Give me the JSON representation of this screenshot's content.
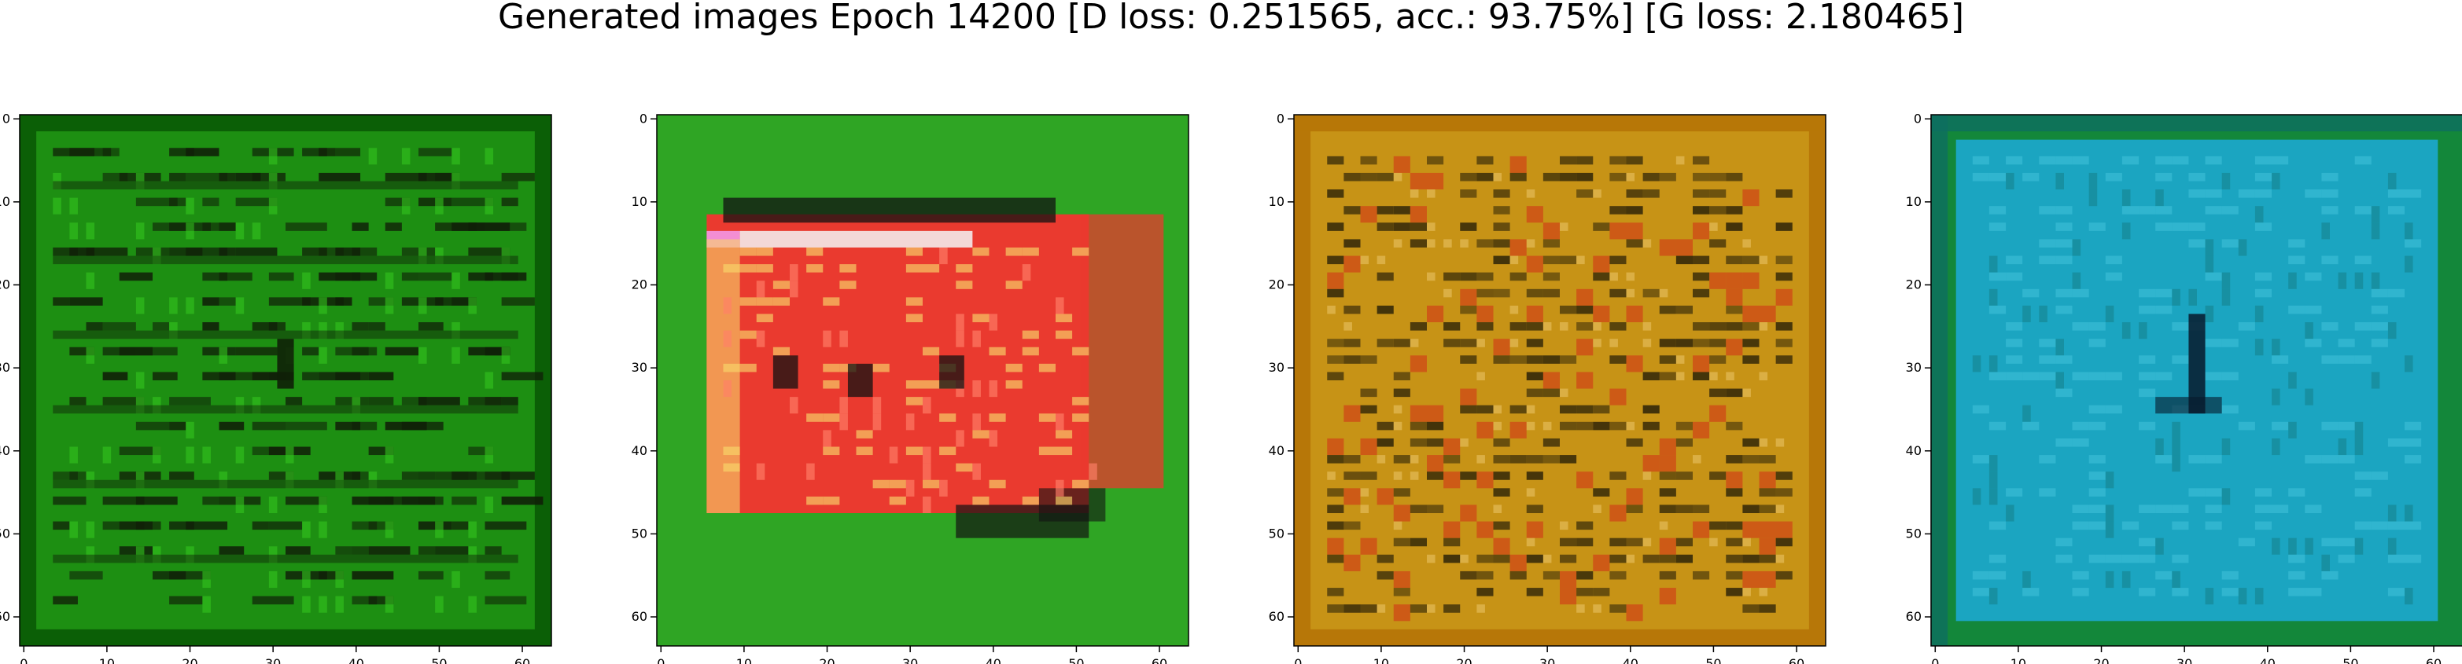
{
  "figure": {
    "title": "Generated images Epoch 14200 [D loss: 0.251565, acc.: 93.75%] [G loss: 2.180465]"
  },
  "chart_data": [
    {
      "type": "heatmap",
      "title": "",
      "xlabel": "",
      "ylabel": "",
      "xlim": [
        -0.5,
        63.5
      ],
      "ylim": [
        63.5,
        -0.5
      ],
      "xticks": [
        0,
        10,
        20,
        30,
        40,
        50,
        60
      ],
      "yticks": [
        0,
        10,
        20,
        30,
        40,
        50,
        60
      ],
      "grid": false,
      "image": {
        "size": [
          64,
          64
        ],
        "base_color": "#1d8f12",
        "border_color": "#0b5f06",
        "dark_color": "#102008",
        "accent_color": "#33c51e"
      }
    },
    {
      "type": "heatmap",
      "title": "",
      "xlabel": "",
      "ylabel": "",
      "xlim": [
        -0.5,
        63.5
      ],
      "ylim": [
        63.5,
        -0.5
      ],
      "xticks": [
        0,
        10,
        20,
        30,
        40,
        50,
        60
      ],
      "yticks": [
        0,
        10,
        20,
        30,
        40,
        50,
        60
      ],
      "grid": false,
      "image": {
        "size": [
          64,
          64
        ],
        "base_color": "#2fa524",
        "border_color": "#2d9c1f",
        "patch_color": "#ea3a2f",
        "highlight_color": "#f7d56a",
        "dark_color": "#121212",
        "pink_color": "#f59ef0"
      }
    },
    {
      "type": "heatmap",
      "title": "",
      "xlabel": "",
      "ylabel": "",
      "xlim": [
        -0.5,
        63.5
      ],
      "ylim": [
        63.5,
        -0.5
      ],
      "xticks": [
        0,
        10,
        20,
        30,
        40,
        50,
        60
      ],
      "yticks": [
        0,
        10,
        20,
        30,
        40,
        50,
        60
      ],
      "grid": false,
      "image": {
        "size": [
          64,
          64
        ],
        "base_color": "#c79316",
        "border_color": "#b77708",
        "dark_color": "#2a2108",
        "red_color": "#d13318",
        "light_color": "#f0cc72"
      }
    },
    {
      "type": "heatmap",
      "title": "",
      "xlabel": "",
      "ylabel": "",
      "xlim": [
        -0.5,
        63.5
      ],
      "ylim": [
        63.5,
        -0.5
      ],
      "xticks": [
        0,
        10,
        20,
        30,
        40,
        50,
        60
      ],
      "yticks": [
        0,
        10,
        20,
        30,
        40,
        50,
        60
      ],
      "grid": false,
      "image": {
        "size": [
          64,
          64
        ],
        "base_color": "#1ba5c1",
        "border_color": "#0e6e60",
        "edge_color": "#13873a",
        "dark_color": "#07192b",
        "light_color": "#42c2da"
      }
    }
  ]
}
